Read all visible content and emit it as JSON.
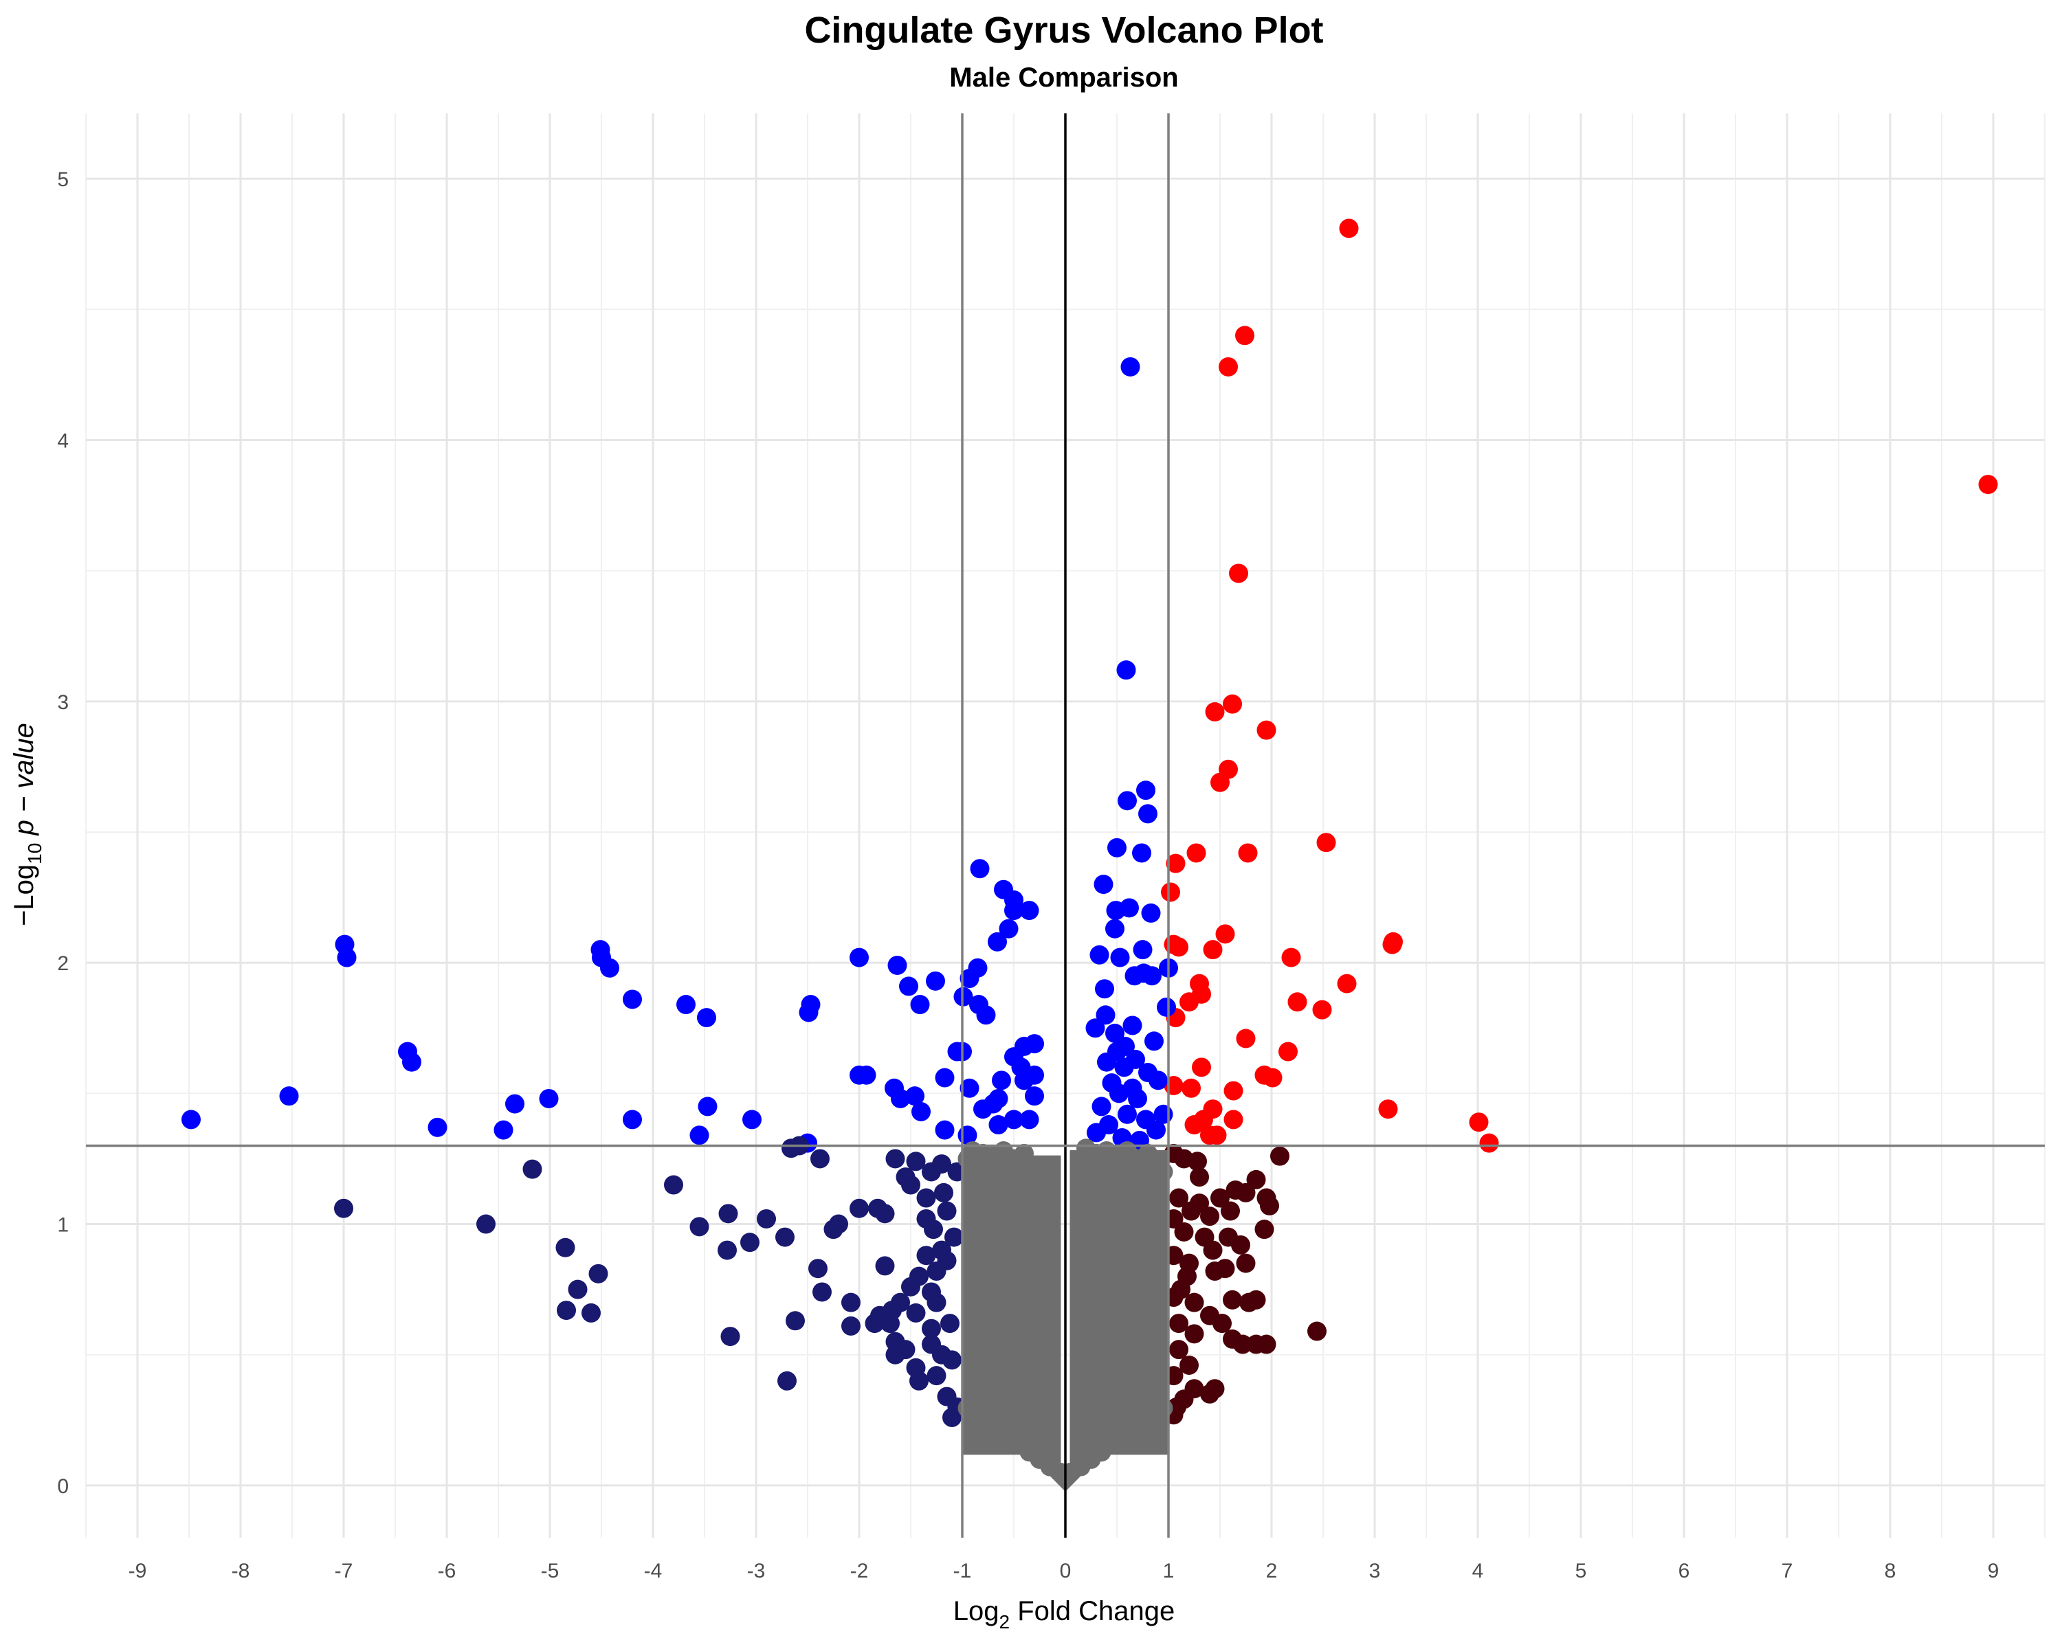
{
  "chart_data": {
    "type": "scatter",
    "title": "Cingulate Gyrus Volcano Plot",
    "subtitle": "Male Comparison",
    "xlabel": {
      "prefix": "Log",
      "sub": "2",
      "suffix": " Fold Change"
    },
    "ylabel": {
      "prefix": "−Log",
      "sub": "10",
      "suffix": " p − value"
    },
    "xlim": [
      -9.5,
      9.5
    ],
    "ylim": [
      -0.2,
      5.25
    ],
    "x_ticks": [
      -9,
      -8,
      -7,
      -6,
      -5,
      -4,
      -3,
      -2,
      -1,
      0,
      1,
      2,
      3,
      4,
      5,
      6,
      7,
      8,
      9
    ],
    "x_tick_labels": [
      "-9",
      "-8",
      "-7",
      "-6",
      "-5",
      "-4",
      "-3",
      "-2",
      "-1",
      "0",
      "1",
      "2",
      "3",
      "4",
      "5",
      "6",
      "7",
      "8",
      "9"
    ],
    "y_ticks": [
      0,
      1,
      2,
      3,
      4,
      5
    ],
    "y_tick_labels": [
      "0",
      "1",
      "2",
      "3",
      "4",
      "5"
    ],
    "grid": true,
    "reference_lines": {
      "vertical": [
        -1,
        0,
        1
      ],
      "horizontal": [
        1.3
      ]
    },
    "colors": {
      "sig_up": "#ff0000",
      "sig_small": "#0000ff",
      "down_nonsig": "#191970",
      "up_nonsig": "#4a0008",
      "nonsig": "#6e6e6e",
      "ref_line": "#7f7f7f",
      "zero_line": "#000000"
    },
    "series": [
      {
        "key": "sig_up",
        "points": [
          [
            2.75,
            4.81
          ],
          [
            1.74,
            4.4
          ],
          [
            1.58,
            4.28
          ],
          [
            8.95,
            3.83
          ],
          [
            1.68,
            3.49
          ],
          [
            1.62,
            2.99
          ],
          [
            1.45,
            2.96
          ],
          [
            1.95,
            2.89
          ],
          [
            1.58,
            2.74
          ],
          [
            1.5,
            2.69
          ],
          [
            2.53,
            2.46
          ],
          [
            1.77,
            2.42
          ],
          [
            1.27,
            2.42
          ],
          [
            1.07,
            2.38
          ],
          [
            1.02,
            2.27
          ],
          [
            1.55,
            2.11
          ],
          [
            3.18,
            2.08
          ],
          [
            3.17,
            2.07
          ],
          [
            1.05,
            2.07
          ],
          [
            1.1,
            2.06
          ],
          [
            1.43,
            2.05
          ],
          [
            2.19,
            2.02
          ],
          [
            2.73,
            1.92
          ],
          [
            1.3,
            1.92
          ],
          [
            1.32,
            1.88
          ],
          [
            1.2,
            1.85
          ],
          [
            2.25,
            1.85
          ],
          [
            2.49,
            1.82
          ],
          [
            1.07,
            1.79
          ],
          [
            1.75,
            1.71
          ],
          [
            2.16,
            1.66
          ],
          [
            1.32,
            1.6
          ],
          [
            1.93,
            1.57
          ],
          [
            2.01,
            1.56
          ],
          [
            1.05,
            1.53
          ],
          [
            1.22,
            1.52
          ],
          [
            1.63,
            1.51
          ],
          [
            1.43,
            1.44
          ],
          [
            3.13,
            1.44
          ],
          [
            1.34,
            1.4
          ],
          [
            1.25,
            1.38
          ],
          [
            1.63,
            1.4
          ],
          [
            4.01,
            1.39
          ],
          [
            1.4,
            1.34
          ],
          [
            1.47,
            1.34
          ],
          [
            4.11,
            1.31
          ]
        ]
      },
      {
        "key": "sig_small",
        "points": [
          [
            0.63,
            4.28
          ],
          [
            0.59,
            3.12
          ],
          [
            0.78,
            2.66
          ],
          [
            0.6,
            2.62
          ],
          [
            0.8,
            2.57
          ],
          [
            0.5,
            2.44
          ],
          [
            0.74,
            2.42
          ],
          [
            -0.83,
            2.36
          ],
          [
            0.37,
            2.3
          ],
          [
            -0.6,
            2.28
          ],
          [
            -0.5,
            2.24
          ],
          [
            -0.5,
            2.2
          ],
          [
            0.62,
            2.21
          ],
          [
            0.49,
            2.2
          ],
          [
            -0.35,
            2.2
          ],
          [
            0.83,
            2.19
          ],
          [
            -0.55,
            2.13
          ],
          [
            0.48,
            2.13
          ],
          [
            -0.66,
            2.08
          ],
          [
            0.75,
            2.05
          ],
          [
            0.33,
            2.03
          ],
          [
            0.53,
            2.02
          ],
          [
            -6.99,
            2.07
          ],
          [
            -6.97,
            2.02
          ],
          [
            -4.51,
            2.05
          ],
          [
            -4.5,
            2.02
          ],
          [
            -4.42,
            1.98
          ],
          [
            -2.0,
            2.02
          ],
          [
            -1.63,
            1.99
          ],
          [
            -0.85,
            1.98
          ],
          [
            1.0,
            1.98
          ],
          [
            0.67,
            1.95
          ],
          [
            0.84,
            1.95
          ],
          [
            0.76,
            1.96
          ],
          [
            -1.26,
            1.93
          ],
          [
            -0.93,
            1.94
          ],
          [
            -1.52,
            1.91
          ],
          [
            0.38,
            1.9
          ],
          [
            -1.41,
            1.84
          ],
          [
            -0.84,
            1.84
          ],
          [
            -0.99,
            1.87
          ],
          [
            -4.2,
            1.86
          ],
          [
            -3.68,
            1.84
          ],
          [
            -2.47,
            1.84
          ],
          [
            -2.49,
            1.81
          ],
          [
            -3.48,
            1.79
          ],
          [
            0.39,
            1.8
          ],
          [
            0.98,
            1.83
          ],
          [
            -0.77,
            1.8
          ],
          [
            0.29,
            1.75
          ],
          [
            0.65,
            1.76
          ],
          [
            0.86,
            1.7
          ],
          [
            -0.3,
            1.69
          ],
          [
            -0.4,
            1.68
          ],
          [
            -1.0,
            1.66
          ],
          [
            -1.05,
            1.66
          ],
          [
            -0.5,
            1.64
          ],
          [
            -0.43,
            1.6
          ],
          [
            -6.38,
            1.66
          ],
          [
            -6.34,
            1.62
          ],
          [
            -0.62,
            1.55
          ],
          [
            -0.3,
            1.57
          ],
          [
            -0.4,
            1.55
          ],
          [
            -2.0,
            1.57
          ],
          [
            -1.93,
            1.57
          ],
          [
            -1.17,
            1.56
          ],
          [
            -1.66,
            1.52
          ],
          [
            -0.93,
            1.52
          ],
          [
            -1.46,
            1.49
          ],
          [
            -1.6,
            1.48
          ],
          [
            -0.3,
            1.49
          ],
          [
            -0.65,
            1.48
          ],
          [
            -0.7,
            1.46
          ],
          [
            -0.8,
            1.44
          ],
          [
            -7.53,
            1.49
          ],
          [
            -5.01,
            1.48
          ],
          [
            -5.34,
            1.46
          ],
          [
            -3.47,
            1.45
          ],
          [
            -1.4,
            1.43
          ],
          [
            -0.5,
            1.4
          ],
          [
            -0.35,
            1.4
          ],
          [
            -0.65,
            1.38
          ],
          [
            -8.48,
            1.4
          ],
          [
            -4.2,
            1.4
          ],
          [
            -3.04,
            1.4
          ],
          [
            -6.09,
            1.37
          ],
          [
            -5.45,
            1.36
          ],
          [
            -3.55,
            1.34
          ],
          [
            -1.17,
            1.36
          ],
          [
            -0.95,
            1.34
          ],
          [
            -2.5,
            1.31
          ],
          [
            0.5,
            1.66
          ],
          [
            0.57,
            1.6
          ],
          [
            0.45,
            1.54
          ],
          [
            0.52,
            1.5
          ],
          [
            0.7,
            1.48
          ],
          [
            0.9,
            1.55
          ],
          [
            0.35,
            1.45
          ],
          [
            0.6,
            1.42
          ],
          [
            0.78,
            1.4
          ],
          [
            0.42,
            1.38
          ],
          [
            0.95,
            1.42
          ],
          [
            0.3,
            1.35
          ],
          [
            0.55,
            1.33
          ],
          [
            0.72,
            1.32
          ],
          [
            0.88,
            1.36
          ],
          [
            0.65,
            1.52
          ],
          [
            0.48,
            1.73
          ],
          [
            0.8,
            1.58
          ],
          [
            0.58,
            1.68
          ],
          [
            0.4,
            1.62
          ],
          [
            0.68,
            1.63
          ]
        ]
      },
      {
        "key": "down_nonsig",
        "points": [
          [
            -2.66,
            1.29
          ],
          [
            -2.58,
            1.3
          ],
          [
            -2.38,
            1.25
          ],
          [
            -5.17,
            1.21
          ],
          [
            -3.8,
            1.15
          ],
          [
            -1.65,
            1.25
          ],
          [
            -1.45,
            1.24
          ],
          [
            -1.3,
            1.2
          ],
          [
            -1.2,
            1.23
          ],
          [
            -1.5,
            1.15
          ],
          [
            -1.55,
            1.18
          ],
          [
            -1.35,
            1.1
          ],
          [
            -1.18,
            1.12
          ],
          [
            -1.05,
            1.2
          ],
          [
            -7.0,
            1.06
          ],
          [
            -3.27,
            1.04
          ],
          [
            -2.9,
            1.02
          ],
          [
            -2.0,
            1.06
          ],
          [
            -1.82,
            1.06
          ],
          [
            -1.75,
            1.04
          ],
          [
            -1.35,
            1.02
          ],
          [
            -1.15,
            1.05
          ],
          [
            -2.2,
            1.0
          ],
          [
            -2.25,
            0.98
          ],
          [
            -5.62,
            1.0
          ],
          [
            -3.55,
            0.99
          ],
          [
            -2.72,
            0.95
          ],
          [
            -3.06,
            0.93
          ],
          [
            -3.28,
            0.9
          ],
          [
            -4.85,
            0.91
          ],
          [
            -1.35,
            0.88
          ],
          [
            -1.15,
            0.86
          ],
          [
            -1.25,
            0.82
          ],
          [
            -1.42,
            0.8
          ],
          [
            -2.4,
            0.83
          ],
          [
            -1.75,
            0.84
          ],
          [
            -1.5,
            0.76
          ],
          [
            -1.3,
            0.74
          ],
          [
            -4.53,
            0.81
          ],
          [
            -4.73,
            0.75
          ],
          [
            -2.36,
            0.74
          ],
          [
            -1.6,
            0.7
          ],
          [
            -1.45,
            0.66
          ],
          [
            -1.25,
            0.7
          ],
          [
            -2.08,
            0.7
          ],
          [
            -1.8,
            0.65
          ],
          [
            -1.68,
            0.67
          ],
          [
            -1.7,
            0.62
          ],
          [
            -1.85,
            0.62
          ],
          [
            -4.84,
            0.67
          ],
          [
            -4.6,
            0.66
          ],
          [
            -2.62,
            0.63
          ],
          [
            -2.08,
            0.61
          ],
          [
            -3.25,
            0.57
          ],
          [
            -1.65,
            0.55
          ],
          [
            -1.55,
            0.52
          ],
          [
            -1.3,
            0.54
          ],
          [
            -1.2,
            0.5
          ],
          [
            -1.1,
            0.48
          ],
          [
            -1.65,
            0.5
          ],
          [
            -1.45,
            0.45
          ],
          [
            -1.25,
            0.42
          ],
          [
            -1.42,
            0.4
          ],
          [
            -2.7,
            0.4
          ],
          [
            -1.15,
            0.34
          ],
          [
            -1.05,
            0.3
          ],
          [
            -1.1,
            0.26
          ],
          [
            -1.3,
            0.6
          ],
          [
            -1.12,
            0.62
          ],
          [
            -1.2,
            0.9
          ],
          [
            -1.08,
            0.95
          ],
          [
            -1.28,
            0.98
          ]
        ]
      },
      {
        "key": "up_nonsig",
        "points": [
          [
            1.05,
            1.27
          ],
          [
            1.15,
            1.25
          ],
          [
            1.28,
            1.24
          ],
          [
            2.08,
            1.26
          ],
          [
            1.85,
            1.17
          ],
          [
            1.65,
            1.13
          ],
          [
            1.5,
            1.1
          ],
          [
            1.75,
            1.12
          ],
          [
            1.95,
            1.1
          ],
          [
            1.98,
            1.07
          ],
          [
            1.1,
            1.1
          ],
          [
            1.3,
            1.08
          ],
          [
            1.22,
            1.05
          ],
          [
            1.4,
            1.03
          ],
          [
            1.05,
            1.02
          ],
          [
            1.15,
            0.97
          ],
          [
            1.35,
            0.95
          ],
          [
            1.58,
            0.95
          ],
          [
            1.43,
            0.9
          ],
          [
            1.7,
            0.92
          ],
          [
            1.93,
            0.98
          ],
          [
            1.05,
            0.88
          ],
          [
            1.2,
            0.85
          ],
          [
            1.55,
            0.83
          ],
          [
            1.75,
            0.85
          ],
          [
            1.18,
            0.8
          ],
          [
            1.45,
            0.82
          ],
          [
            1.05,
            0.72
          ],
          [
            1.25,
            0.7
          ],
          [
            1.62,
            0.71
          ],
          [
            1.78,
            0.7
          ],
          [
            1.85,
            0.71
          ],
          [
            1.4,
            0.65
          ],
          [
            1.52,
            0.62
          ],
          [
            1.1,
            0.62
          ],
          [
            1.25,
            0.58
          ],
          [
            1.62,
            0.56
          ],
          [
            1.72,
            0.54
          ],
          [
            1.85,
            0.54
          ],
          [
            1.95,
            0.54
          ],
          [
            2.44,
            0.59
          ],
          [
            1.1,
            0.52
          ],
          [
            1.2,
            0.46
          ],
          [
            1.05,
            0.42
          ],
          [
            1.25,
            0.37
          ],
          [
            1.4,
            0.35
          ],
          [
            1.45,
            0.37
          ],
          [
            1.15,
            0.33
          ],
          [
            1.08,
            0.3
          ],
          [
            1.05,
            0.27
          ],
          [
            1.3,
            1.18
          ],
          [
            1.6,
            1.05
          ],
          [
            1.12,
            0.75
          ]
        ]
      },
      {
        "key": "nonsig",
        "cloud": true,
        "points": [
          [
            -0.95,
            1.25
          ],
          [
            -0.9,
            1.28
          ],
          [
            -0.8,
            1.27
          ],
          [
            -0.7,
            1.26
          ],
          [
            -0.6,
            1.28
          ],
          [
            -0.5,
            1.25
          ],
          [
            -0.4,
            1.27
          ],
          [
            -0.3,
            1.22
          ],
          [
            -0.2,
            1.2
          ],
          [
            0.2,
            1.29
          ],
          [
            0.3,
            1.27
          ],
          [
            0.4,
            1.28
          ],
          [
            0.5,
            1.26
          ],
          [
            0.6,
            1.28
          ],
          [
            0.7,
            1.25
          ],
          [
            0.8,
            1.27
          ],
          [
            0.9,
            1.24
          ],
          [
            0.95,
            1.2
          ]
        ]
      }
    ]
  }
}
